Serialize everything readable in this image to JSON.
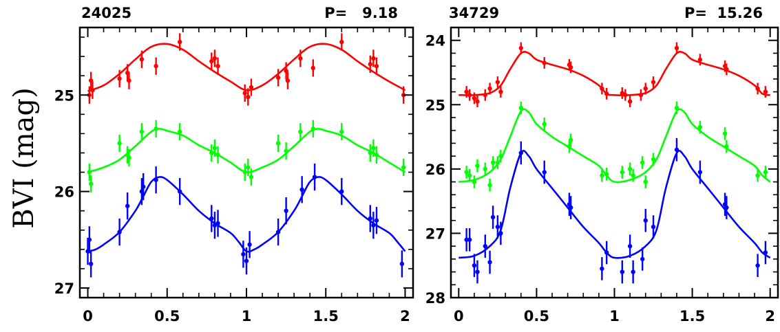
{
  "figure": {
    "ylabel": "BVI (mag)"
  },
  "chart_data": [
    {
      "type": "scatter",
      "title": "24025",
      "period_label": "P=   9.18",
      "xlabel": "",
      "ylabel": "BVI (mag)",
      "xlim": [
        -0.05,
        2.05
      ],
      "ylim": [
        27.1,
        24.3
      ],
      "y_inverted": true,
      "x_ticks": [
        "0",
        "0.5",
        "1",
        "1.5",
        "2"
      ],
      "y_ticks": [
        "25",
        "26",
        "27"
      ],
      "grid": false,
      "series": [
        {
          "color": "#ff0000",
          "curve": [
            [
              0,
              24.96
            ],
            [
              0.1,
              24.9
            ],
            [
              0.2,
              24.78
            ],
            [
              0.3,
              24.63
            ],
            [
              0.4,
              24.5
            ],
            [
              0.5,
              24.47
            ],
            [
              0.6,
              24.53
            ],
            [
              0.7,
              24.65
            ],
            [
              0.8,
              24.76
            ],
            [
              0.9,
              24.86
            ],
            [
              1.0,
              24.95
            ]
          ],
          "points": [
            [
              0.01,
              25.0
            ],
            [
              0.02,
              24.85
            ],
            [
              0.03,
              24.95
            ],
            [
              0.2,
              24.83
            ],
            [
              0.25,
              24.77
            ],
            [
              0.26,
              24.85
            ],
            [
              0.34,
              24.63
            ],
            [
              0.43,
              24.7
            ],
            [
              0.58,
              24.45
            ],
            [
              0.78,
              24.65
            ],
            [
              0.8,
              24.62
            ],
            [
              0.82,
              24.7
            ],
            [
              0.99,
              24.98
            ],
            [
              1.01,
              25.02
            ],
            [
              1.03,
              24.92
            ],
            [
              1.2,
              24.82
            ],
            [
              1.25,
              24.75
            ],
            [
              1.26,
              24.85
            ],
            [
              1.34,
              24.62
            ],
            [
              1.42,
              24.72
            ],
            [
              1.6,
              24.45
            ],
            [
              1.78,
              24.68
            ],
            [
              1.8,
              24.62
            ],
            [
              1.82,
              24.7
            ],
            [
              1.99,
              25.0
            ]
          ],
          "err": 0.09
        },
        {
          "color": "#00ff00",
          "curve": [
            [
              0,
              25.8
            ],
            [
              0.1,
              25.75
            ],
            [
              0.2,
              25.67
            ],
            [
              0.3,
              25.53
            ],
            [
              0.4,
              25.38
            ],
            [
              0.45,
              25.35
            ],
            [
              0.5,
              25.37
            ],
            [
              0.6,
              25.42
            ],
            [
              0.7,
              25.52
            ],
            [
              0.8,
              25.6
            ],
            [
              0.9,
              25.7
            ],
            [
              1.0,
              25.8
            ]
          ],
          "points": [
            [
              0.01,
              25.8
            ],
            [
              0.02,
              25.92
            ],
            [
              0.2,
              25.5
            ],
            [
              0.25,
              25.62
            ],
            [
              0.26,
              25.65
            ],
            [
              0.34,
              25.38
            ],
            [
              0.43,
              25.35
            ],
            [
              0.58,
              25.38
            ],
            [
              0.78,
              25.6
            ],
            [
              0.8,
              25.55
            ],
            [
              0.82,
              25.62
            ],
            [
              0.99,
              25.8
            ],
            [
              1.01,
              25.75
            ],
            [
              1.03,
              25.85
            ],
            [
              1.2,
              25.5
            ],
            [
              1.25,
              25.58
            ],
            [
              1.34,
              25.38
            ],
            [
              1.42,
              25.35
            ],
            [
              1.6,
              25.38
            ],
            [
              1.78,
              25.6
            ],
            [
              1.8,
              25.55
            ],
            [
              1.82,
              25.62
            ],
            [
              1.99,
              25.75
            ]
          ],
          "err": 0.09
        },
        {
          "color": "#0000ff",
          "curve": [
            [
              0,
              26.62
            ],
            [
              0.05,
              26.6
            ],
            [
              0.1,
              26.55
            ],
            [
              0.2,
              26.42
            ],
            [
              0.3,
              26.2
            ],
            [
              0.35,
              26.05
            ],
            [
              0.4,
              25.9
            ],
            [
              0.45,
              25.85
            ],
            [
              0.5,
              25.88
            ],
            [
              0.6,
              26.03
            ],
            [
              0.7,
              26.2
            ],
            [
              0.8,
              26.33
            ],
            [
              0.9,
              26.43
            ],
            [
              0.95,
              26.52
            ],
            [
              1.0,
              26.62
            ]
          ],
          "points": [
            [
              0.0,
              26.62
            ],
            [
              0.01,
              26.5
            ],
            [
              0.02,
              26.75
            ],
            [
              0.2,
              26.42
            ],
            [
              0.25,
              26.15
            ],
            [
              0.34,
              26.0
            ],
            [
              0.35,
              25.95
            ],
            [
              0.43,
              25.88
            ],
            [
              0.58,
              26.0
            ],
            [
              0.78,
              26.28
            ],
            [
              0.8,
              26.35
            ],
            [
              0.82,
              26.33
            ],
            [
              0.98,
              26.65
            ],
            [
              1.0,
              26.72
            ],
            [
              1.02,
              26.55
            ],
            [
              1.2,
              26.42
            ],
            [
              1.25,
              26.2
            ],
            [
              1.35,
              25.98
            ],
            [
              1.43,
              25.85
            ],
            [
              1.6,
              26.0
            ],
            [
              1.78,
              26.28
            ],
            [
              1.8,
              26.35
            ],
            [
              1.82,
              26.3
            ],
            [
              1.98,
              26.75
            ]
          ],
          "err": 0.14
        }
      ]
    },
    {
      "type": "scatter",
      "title": "34729",
      "period_label": "P=  15.26",
      "xlabel": "",
      "ylabel": "",
      "xlim": [
        -0.05,
        2.05
      ],
      "ylim": [
        28.0,
        23.8
      ],
      "y_inverted": true,
      "x_ticks": [
        "0",
        "0.5",
        "1",
        "1.5",
        "2"
      ],
      "y_ticks": [
        "24",
        "25",
        "26",
        "27",
        "28"
      ],
      "grid": false,
      "series": [
        {
          "color": "#ff0000",
          "curve": [
            [
              0,
              24.85
            ],
            [
              0.1,
              24.85
            ],
            [
              0.2,
              24.82
            ],
            [
              0.27,
              24.7
            ],
            [
              0.33,
              24.45
            ],
            [
              0.4,
              24.2
            ],
            [
              0.45,
              24.2
            ],
            [
              0.5,
              24.3
            ],
            [
              0.6,
              24.38
            ],
            [
              0.7,
              24.45
            ],
            [
              0.8,
              24.55
            ],
            [
              0.9,
              24.7
            ],
            [
              0.95,
              24.83
            ],
            [
              1.0,
              24.85
            ]
          ],
          "points": [
            [
              0.05,
              24.8
            ],
            [
              0.07,
              24.85
            ],
            [
              0.1,
              24.9
            ],
            [
              0.12,
              24.95
            ],
            [
              0.17,
              24.85
            ],
            [
              0.2,
              24.75
            ],
            [
              0.25,
              24.65
            ],
            [
              0.27,
              24.8
            ],
            [
              0.4,
              24.12
            ],
            [
              0.55,
              24.35
            ],
            [
              0.71,
              24.38
            ],
            [
              0.72,
              24.42
            ],
            [
              0.92,
              24.75
            ],
            [
              0.95,
              24.83
            ],
            [
              1.05,
              24.82
            ],
            [
              1.07,
              24.85
            ],
            [
              1.1,
              24.95
            ],
            [
              1.17,
              24.85
            ],
            [
              1.2,
              24.75
            ],
            [
              1.25,
              24.65
            ],
            [
              1.4,
              24.12
            ],
            [
              1.55,
              24.3
            ],
            [
              1.71,
              24.4
            ],
            [
              1.72,
              24.45
            ],
            [
              1.92,
              24.75
            ],
            [
              1.97,
              24.8
            ]
          ],
          "err": 0.09
        },
        {
          "color": "#00ff00",
          "curve": [
            [
              0,
              26.2
            ],
            [
              0.1,
              26.17
            ],
            [
              0.2,
              26.05
            ],
            [
              0.27,
              25.85
            ],
            [
              0.33,
              25.5
            ],
            [
              0.4,
              25.1
            ],
            [
              0.45,
              25.12
            ],
            [
              0.5,
              25.3
            ],
            [
              0.6,
              25.5
            ],
            [
              0.7,
              25.65
            ],
            [
              0.8,
              25.8
            ],
            [
              0.9,
              25.95
            ],
            [
              0.95,
              26.1
            ],
            [
              1.0,
              26.2
            ]
          ],
          "points": [
            [
              0.05,
              26.05
            ],
            [
              0.07,
              26.1
            ],
            [
              0.1,
              26.2
            ],
            [
              0.12,
              25.95
            ],
            [
              0.17,
              26.0
            ],
            [
              0.2,
              26.25
            ],
            [
              0.22,
              25.9
            ],
            [
              0.25,
              25.9
            ],
            [
              0.27,
              25.8
            ],
            [
              0.4,
              25.05
            ],
            [
              0.55,
              25.3
            ],
            [
              0.71,
              25.65
            ],
            [
              0.72,
              25.55
            ],
            [
              0.92,
              26.1
            ],
            [
              0.95,
              26.08
            ],
            [
              1.05,
              26.05
            ],
            [
              1.1,
              26.0
            ],
            [
              1.12,
              26.1
            ],
            [
              1.18,
              25.9
            ],
            [
              1.2,
              26.2
            ],
            [
              1.25,
              25.85
            ],
            [
              1.4,
              25.05
            ],
            [
              1.55,
              25.35
            ],
            [
              1.71,
              25.45
            ],
            [
              1.72,
              25.65
            ],
            [
              1.92,
              26.1
            ],
            [
              1.97,
              26.05
            ]
          ],
          "err": 0.1
        },
        {
          "color": "#0000ff",
          "curve": [
            [
              0,
              27.38
            ],
            [
              0.1,
              27.35
            ],
            [
              0.2,
              27.2
            ],
            [
              0.27,
              26.95
            ],
            [
              0.33,
              26.3
            ],
            [
              0.4,
              25.75
            ],
            [
              0.45,
              25.8
            ],
            [
              0.5,
              26.0
            ],
            [
              0.6,
              26.3
            ],
            [
              0.7,
              26.6
            ],
            [
              0.8,
              26.9
            ],
            [
              0.9,
              27.15
            ],
            [
              0.95,
              27.3
            ],
            [
              1.0,
              27.38
            ]
          ],
          "points": [
            [
              0.05,
              27.1
            ],
            [
              0.07,
              27.1
            ],
            [
              0.1,
              27.5
            ],
            [
              0.12,
              27.6
            ],
            [
              0.17,
              27.2
            ],
            [
              0.2,
              27.45
            ],
            [
              0.22,
              26.75
            ],
            [
              0.25,
              26.9
            ],
            [
              0.27,
              27.0
            ],
            [
              0.4,
              25.75
            ],
            [
              0.55,
              26.05
            ],
            [
              0.71,
              26.55
            ],
            [
              0.72,
              26.6
            ],
            [
              0.92,
              27.55
            ],
            [
              0.95,
              27.3
            ],
            [
              1.05,
              27.6
            ],
            [
              1.1,
              27.2
            ],
            [
              1.12,
              27.6
            ],
            [
              1.18,
              27.4
            ],
            [
              1.2,
              26.8
            ],
            [
              1.25,
              26.9
            ],
            [
              1.4,
              25.7
            ],
            [
              1.55,
              26.05
            ],
            [
              1.71,
              26.55
            ],
            [
              1.72,
              26.6
            ],
            [
              1.92,
              27.5
            ],
            [
              1.97,
              27.3
            ]
          ],
          "err": 0.18
        }
      ]
    }
  ]
}
